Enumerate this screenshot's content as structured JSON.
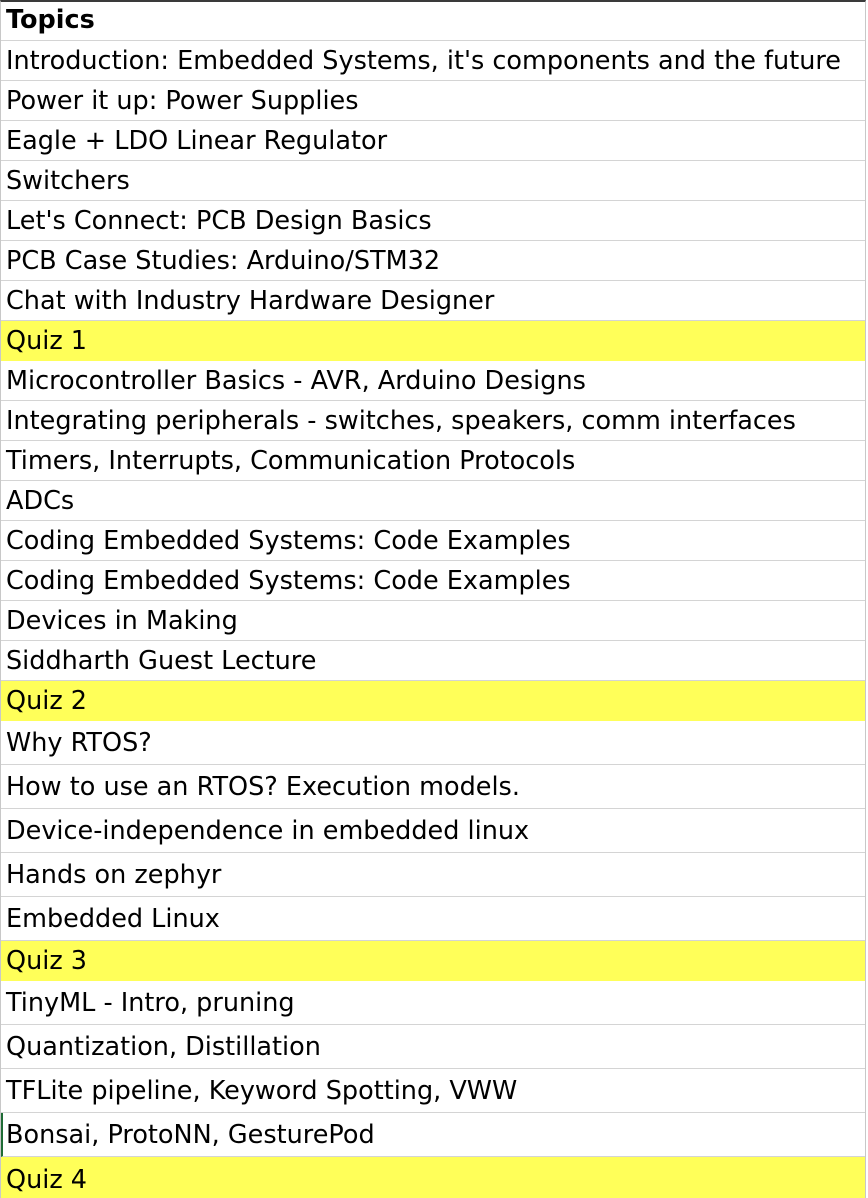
{
  "sheet": {
    "header": "Topics",
    "rows": [
      "Introduction: Embedded Systems, it's components and the future",
      "Power it up: Power Supplies",
      "Eagle + LDO Linear Regulator",
      "Switchers",
      "Let's Connect: PCB Design Basics",
      "PCB Case Studies: Arduino/STM32",
      "Chat with Industry Hardware Designer",
      "Quiz 1",
      "Microcontroller Basics - AVR, Arduino Designs",
      "Integrating peripherals - switches, speakers, comm interfaces",
      "Timers, Interrupts, Communication Protocols",
      "ADCs",
      "Coding Embedded Systems: Code Examples",
      "Coding Embedded Systems: Code Examples",
      "Devices in Making",
      "Siddharth Guest Lecture",
      "Quiz 2",
      "Why RTOS?",
      "How to use an RTOS? Execution models.",
      "Device-independence in embedded linux",
      "Hands on zephyr",
      "Embedded Linux",
      "Quiz 3",
      "TinyML - Intro, pruning",
      "Quantization, Distillation",
      "TFLite pipeline, Keyword Spotting, VWW",
      "Bonsai, ProtoNN, GesturePod",
      "Quiz 4"
    ]
  },
  "colors": {
    "quiz_highlight": "#ffff59",
    "gridline": "#d4d4d4",
    "cursor": "#1e6b35"
  }
}
